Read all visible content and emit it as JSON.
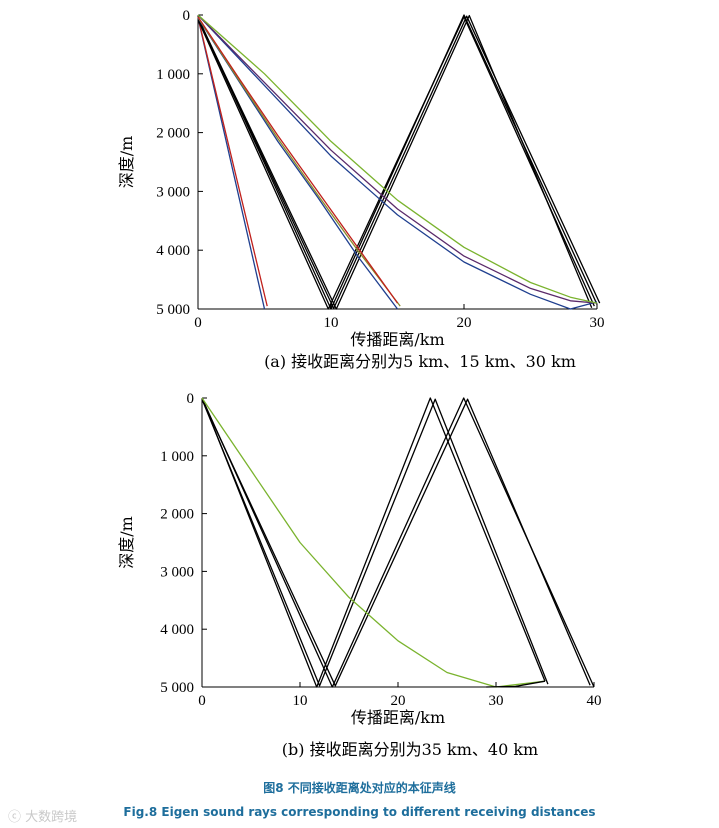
{
  "figure": {
    "caption_cn": "图8 不同接收距离处对应的本征声线",
    "caption_en": "Fig.8 Eigen sound rays corresponding to different receiving distances",
    "watermark": "ⓒ 大数跨境"
  },
  "colors": {
    "black": "#000000",
    "blue": "#1f3f8f",
    "red": "#c0201c",
    "green": "#7ab32e",
    "olive": "#8a8a2a",
    "purple": "#5a2a6a",
    "caption": "#1e6e9c"
  },
  "chart_data": [
    {
      "type": "line",
      "subplot": "(a)",
      "subtitle": "(a)  接收距离分别为5 km、15 km、30 km",
      "xlabel": "传播距离/km",
      "ylabel": "深度/m",
      "xlim": [
        0,
        30
      ],
      "ylim": [
        0,
        5000
      ],
      "y_inverted": true,
      "x_ticks": [
        0,
        10,
        20,
        30
      ],
      "x_tick_labels": [
        "0",
        "10",
        "20",
        "30"
      ],
      "y_ticks": [
        0,
        1000,
        2000,
        3000,
        4000,
        5000
      ],
      "y_tick_labels": [
        "0",
        "1 000",
        "2 000",
        "3 000",
        "4 000",
        "5 000"
      ],
      "grid": false,
      "series": [
        {
          "color": "#1f3f8f",
          "points": [
            [
              0,
              50
            ],
            [
              5.0,
              5000
            ]
          ]
        },
        {
          "color": "#c0201c",
          "points": [
            [
              0,
              40
            ],
            [
              5.2,
              4950
            ]
          ]
        },
        {
          "color": "#000000",
          "points": [
            [
              0,
              40
            ],
            [
              10.0,
              5000
            ],
            [
              20.0,
              0
            ],
            [
              30.0,
              4920
            ]
          ]
        },
        {
          "color": "#000000",
          "points": [
            [
              0,
              60
            ],
            [
              10.2,
              4990
            ],
            [
              20.2,
              20
            ],
            [
              30.2,
              4900
            ]
          ]
        },
        {
          "color": "#000000",
          "points": [
            [
              0,
              80
            ],
            [
              9.8,
              5000
            ],
            [
              20.0,
              30
            ],
            [
              29.8,
              4950
            ]
          ]
        },
        {
          "color": "#000000",
          "points": [
            [
              0,
              50
            ],
            [
              10.4,
              5000
            ],
            [
              20.4,
              10
            ],
            [
              29.6,
              4980
            ]
          ]
        },
        {
          "color": "#1f3f8f",
          "points": [
            [
              0,
              50
            ],
            [
              3,
              1100
            ],
            [
              6,
              2150
            ],
            [
              9,
              3100
            ],
            [
              12,
              4100
            ],
            [
              15.0,
              5000
            ]
          ]
        },
        {
          "color": "#8a8a2a",
          "points": [
            [
              0,
              40
            ],
            [
              3,
              1080
            ],
            [
              6,
              2100
            ],
            [
              9,
              3060
            ],
            [
              12,
              4000
            ],
            [
              15.2,
              4950
            ]
          ]
        },
        {
          "color": "#c0201c",
          "points": [
            [
              0,
              30
            ],
            [
              3,
              1050
            ],
            [
              6,
              2050
            ],
            [
              9,
              3000
            ],
            [
              12,
              3950
            ],
            [
              15.0,
              4900
            ]
          ]
        },
        {
          "color": "#1f3f8f",
          "points": [
            [
              0,
              0
            ],
            [
              5,
              1200
            ],
            [
              10,
              2400
            ],
            [
              15,
              3400
            ],
            [
              20,
              4200
            ],
            [
              25,
              4750
            ],
            [
              28,
              5000
            ],
            [
              30,
              4880
            ]
          ]
        },
        {
          "color": "#5a2a6a",
          "points": [
            [
              0,
              0
            ],
            [
              5,
              1150
            ],
            [
              10,
              2300
            ],
            [
              15,
              3300
            ],
            [
              20,
              4100
            ],
            [
              25,
              4650
            ],
            [
              28,
              4860
            ],
            [
              30,
              4900
            ]
          ]
        },
        {
          "color": "#7ab32e",
          "points": [
            [
              0,
              0
            ],
            [
              5,
              1000
            ],
            [
              10,
              2150
            ],
            [
              15,
              3150
            ],
            [
              20,
              3950
            ],
            [
              25,
              4550
            ],
            [
              28,
              4800
            ],
            [
              30,
              4900
            ]
          ]
        }
      ]
    },
    {
      "type": "line",
      "subplot": "(b)",
      "subtitle": "(b) 接收距离分别为35 km、40 km",
      "xlabel": "传播距离/km",
      "ylabel": "深度/m",
      "xlim": [
        0,
        40
      ],
      "ylim": [
        0,
        5000
      ],
      "y_inverted": true,
      "x_ticks": [
        0,
        10,
        20,
        30,
        40
      ],
      "x_tick_labels": [
        "0",
        "10",
        "20",
        "30",
        "40"
      ],
      "y_ticks": [
        0,
        1000,
        2000,
        3000,
        4000,
        5000
      ],
      "y_tick_labels": [
        "0",
        "1 000",
        "2 000",
        "3 000",
        "4 000",
        "5 000"
      ],
      "grid": false,
      "series": [
        {
          "color": "#000000",
          "points": [
            [
              0,
              0
            ],
            [
              11.7,
              5000
            ],
            [
              23.3,
              0
            ],
            [
              35.0,
              4900
            ]
          ]
        },
        {
          "color": "#000000",
          "points": [
            [
              0,
              20
            ],
            [
              12.0,
              4980
            ],
            [
              23.8,
              20
            ],
            [
              35.3,
              4950
            ]
          ]
        },
        {
          "color": "#000000",
          "points": [
            [
              0,
              0
            ],
            [
              13.3,
              5000
            ],
            [
              26.7,
              0
            ],
            [
              40.0,
              5000
            ]
          ]
        },
        {
          "color": "#000000",
          "points": [
            [
              0,
              20
            ],
            [
              13.6,
              4980
            ],
            [
              27.1,
              20
            ],
            [
              39.6,
              4970
            ]
          ]
        },
        {
          "color": "#7ab32e",
          "points": [
            [
              0,
              0
            ],
            [
              5,
              1250
            ],
            [
              10,
              2500
            ],
            [
              15,
              3450
            ],
            [
              20,
              4200
            ],
            [
              25,
              4750
            ],
            [
              30,
              5000
            ],
            [
              35,
              4900
            ]
          ]
        },
        {
          "color": "#000000",
          "points": [
            [
              29,
              5000
            ],
            [
              32,
              4990
            ],
            [
              35,
              4900
            ]
          ]
        }
      ]
    }
  ]
}
